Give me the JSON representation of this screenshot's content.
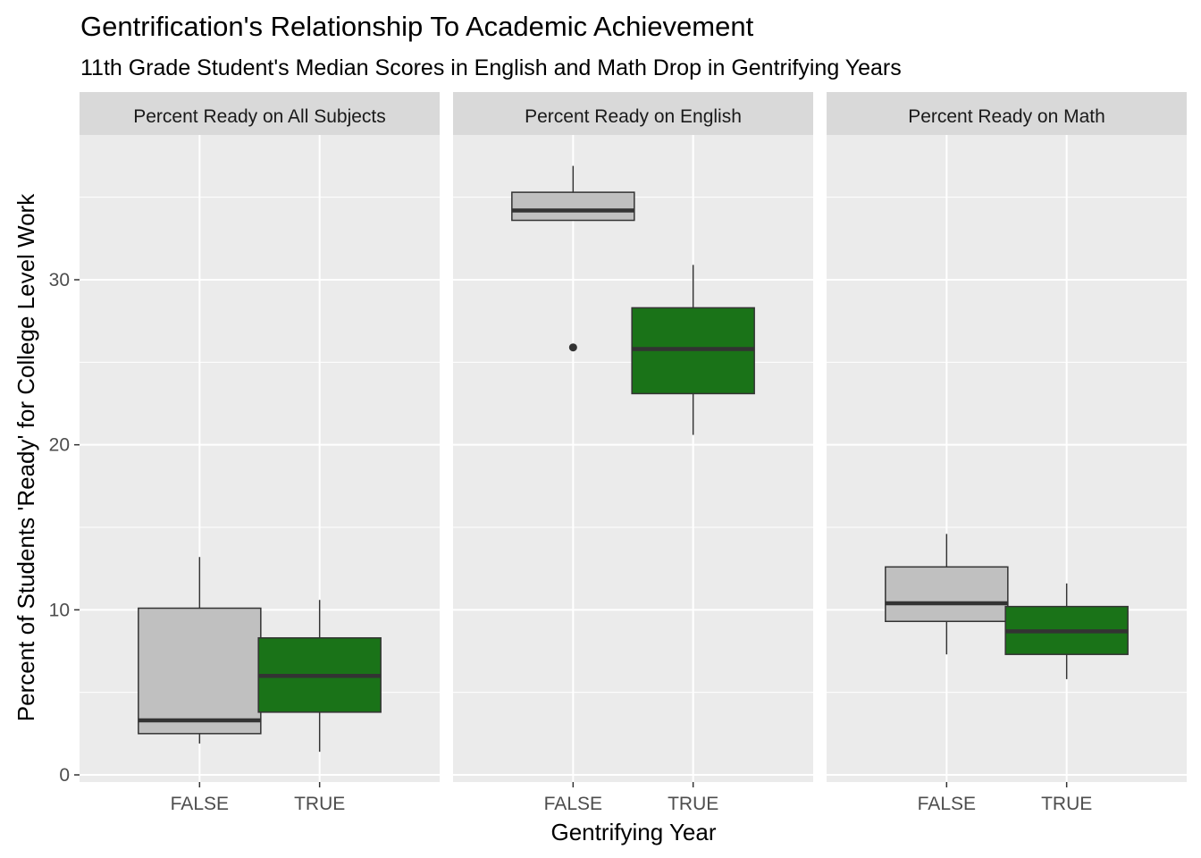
{
  "chart_data": {
    "type": "box",
    "title": "Gentrification's Relationship To Academic Achievement",
    "subtitle": "11th Grade Student's Median Scores in English and Math Drop in Gentrifying Years",
    "xlabel": "Gentrifying Year",
    "ylabel": "Percent of Students 'Ready' for College Level Work",
    "ylim": [
      0,
      39
    ],
    "yticks": [
      0,
      10,
      20,
      30
    ],
    "categories": [
      "FALSE",
      "TRUE"
    ],
    "fill_colors": {
      "FALSE": "#c0c0c0",
      "TRUE": "#1a7318"
    },
    "panel_bg": "#ebebeb",
    "strip_bg": "#d9d9d9",
    "grid": true,
    "legend": "none",
    "facets": [
      {
        "label": "Percent Ready on All Subjects",
        "boxes": [
          {
            "group": "FALSE",
            "min": 1.9,
            "q1": 2.5,
            "median": 3.3,
            "q3": 10.1,
            "max": 13.2,
            "outliers": []
          },
          {
            "group": "TRUE",
            "min": 1.4,
            "q1": 3.8,
            "median": 6.0,
            "q3": 8.3,
            "max": 10.6,
            "outliers": []
          }
        ]
      },
      {
        "label": "Percent Ready on English",
        "boxes": [
          {
            "group": "FALSE",
            "min": 33.6,
            "q1": 33.6,
            "median": 34.2,
            "q3": 35.3,
            "max": 36.9,
            "outliers": [
              25.9
            ]
          },
          {
            "group": "TRUE",
            "min": 20.6,
            "q1": 23.1,
            "median": 25.8,
            "q3": 28.3,
            "max": 30.9,
            "outliers": []
          }
        ]
      },
      {
        "label": "Percent Ready on Math",
        "boxes": [
          {
            "group": "FALSE",
            "min": 7.3,
            "q1": 9.3,
            "median": 10.4,
            "q3": 12.6,
            "max": 14.6,
            "outliers": []
          },
          {
            "group": "TRUE",
            "min": 5.8,
            "q1": 7.3,
            "median": 8.7,
            "q3": 10.2,
            "max": 11.6,
            "outliers": []
          }
        ]
      }
    ]
  }
}
